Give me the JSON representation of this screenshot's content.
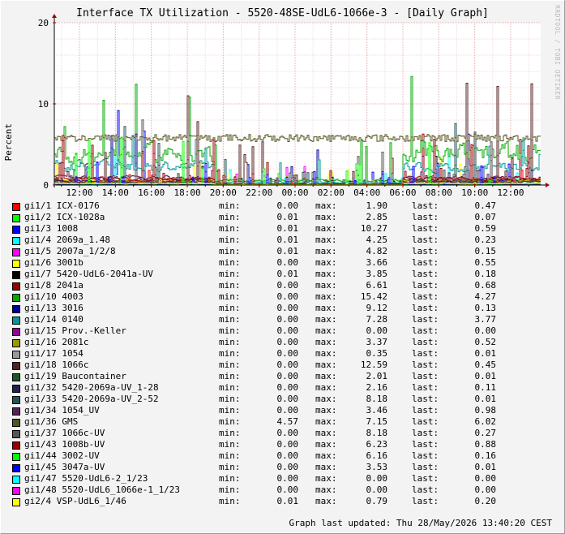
{
  "watermark": "RRDTOOL / TOBI OETIKER",
  "footer": {
    "updated": "Graph last updated: Thu 28/May/2026 13:40:20 CEST"
  },
  "colors": {
    "background": "#f3f3f3",
    "plot_background": "#ffffff",
    "grid": "#e8b0b0",
    "axis": "#000000",
    "arrow": "#a00000"
  },
  "chart_data": {
    "type": "line",
    "title": "Interface TX Utilization - 5520-48SE-UdL6-1066e-3 - [Daily Graph]",
    "ylabel": "Percent",
    "ylim": [
      0,
      20
    ],
    "yticks": [
      0,
      10,
      20
    ],
    "x_range_hours": [
      10.6,
      13.67
    ],
    "xticks": [
      {
        "label": "12:00",
        "hour": 12
      },
      {
        "label": "14:00",
        "hour": 14
      },
      {
        "label": "16:00",
        "hour": 16
      },
      {
        "label": "18:00",
        "hour": 18
      },
      {
        "label": "20:00",
        "hour": 20
      },
      {
        "label": "22:00",
        "hour": 22
      },
      {
        "label": "00:00",
        "hour": 24
      },
      {
        "label": "02:00",
        "hour": 26
      },
      {
        "label": "04:00",
        "hour": 28
      },
      {
        "label": "06:00",
        "hour": 30
      },
      {
        "label": "08:00",
        "hour": 32
      },
      {
        "label": "10:00",
        "hour": 34
      },
      {
        "label": "12:00",
        "hour": 36
      }
    ],
    "grid": true,
    "legend_position": "bottom",
    "stat_labels": {
      "min": "min:",
      "max": "max:",
      "last": "last:"
    },
    "series": [
      {
        "name": "gi1/1 ICX-0176",
        "color": "#ff0000",
        "min": "0.00",
        "max": "1.90",
        "last": "0.47"
      },
      {
        "name": "gi1/2 ICX-1028a",
        "color": "#00ff00",
        "min": "0.01",
        "max": "2.85",
        "last": "0.07"
      },
      {
        "name": "gi1/3 1008",
        "color": "#0000ff",
        "min": "0.01",
        "max": "10.27",
        "last": "0.59"
      },
      {
        "name": "gi1/4 2069a_1.48",
        "color": "#00ffff",
        "min": "0.01",
        "max": "4.25",
        "last": "0.23"
      },
      {
        "name": "gi1/5 2007a_1/2/8",
        "color": "#ff00ff",
        "min": "0.01",
        "max": "4.82",
        "last": "0.15"
      },
      {
        "name": "gi1/6 3001b",
        "color": "#ffff00",
        "min": "0.00",
        "max": "3.66",
        "last": "0.55"
      },
      {
        "name": "gi1/7 5420-UdL6-2041a-UV",
        "color": "#000000",
        "min": "0.01",
        "max": "3.85",
        "last": "0.18"
      },
      {
        "name": "gi1/8 2041a",
        "color": "#990000",
        "min": "0.00",
        "max": "6.61",
        "last": "0.68"
      },
      {
        "name": "gi1/10 4003",
        "color": "#00aa00",
        "min": "0.00",
        "max": "15.42",
        "last": "4.27"
      },
      {
        "name": "gi1/13 3016",
        "color": "#000099",
        "min": "0.00",
        "max": "9.12",
        "last": "0.13"
      },
      {
        "name": "gi1/14 0140",
        "color": "#009999",
        "min": "0.00",
        "max": "7.28",
        "last": "3.77"
      },
      {
        "name": "gi1/15 Prov.-Keller",
        "color": "#990099",
        "min": "0.00",
        "max": "0.00",
        "last": "0.00"
      },
      {
        "name": "gi1/16 2081c",
        "color": "#999900",
        "min": "0.00",
        "max": "3.37",
        "last": "0.52"
      },
      {
        "name": "gi1/17 1054",
        "color": "#999999",
        "min": "0.00",
        "max": "0.35",
        "last": "0.01"
      },
      {
        "name": "gi1/18 1066c",
        "color": "#552222",
        "min": "0.00",
        "max": "12.59",
        "last": "0.45"
      },
      {
        "name": "gi1/19 Baucontainer",
        "color": "#225522",
        "min": "0.00",
        "max": "2.01",
        "last": "0.01"
      },
      {
        "name": "gi1/32 5420-2069a-UV_1-28",
        "color": "#222255",
        "min": "0.00",
        "max": "2.16",
        "last": "0.11"
      },
      {
        "name": "gi1/33 5420-2069a-UV_2-52",
        "color": "#225555",
        "min": "0.00",
        "max": "8.18",
        "last": "0.01"
      },
      {
        "name": "gi1/34 1054_UV",
        "color": "#552255",
        "min": "0.00",
        "max": "3.46",
        "last": "0.98"
      },
      {
        "name": "gi1/36 GMS",
        "color": "#555522",
        "min": "4.57",
        "max": "7.15",
        "last": "6.02"
      },
      {
        "name": "gi1/37 1066c-UV",
        "color": "#555555",
        "min": "0.00",
        "max": "8.18",
        "last": "0.27"
      },
      {
        "name": "gi1/43 1008b-UV",
        "color": "#990000",
        "min": "0.00",
        "max": "6.23",
        "last": "0.88"
      },
      {
        "name": "gi1/44 3002-UV",
        "color": "#00ff00",
        "min": "0.00",
        "max": "6.16",
        "last": "0.16"
      },
      {
        "name": "gi1/45 3047a-UV",
        "color": "#0000ff",
        "min": "0.00",
        "max": "3.53",
        "last": "0.01"
      },
      {
        "name": "gi1/47 5520-UdL6-2_1/23",
        "color": "#00ffff",
        "min": "0.00",
        "max": "0.00",
        "last": "0.00"
      },
      {
        "name": "gi1/48 5520-UdL6_1066e-1_1/23",
        "color": "#ff00ff",
        "min": "0.00",
        "max": "0.00",
        "last": "0.00"
      },
      {
        "name": "gi2/4 VSP-UdL6_1/46",
        "color": "#ffff00",
        "min": "0.01",
        "max": "0.79",
        "last": "0.20"
      }
    ]
  }
}
